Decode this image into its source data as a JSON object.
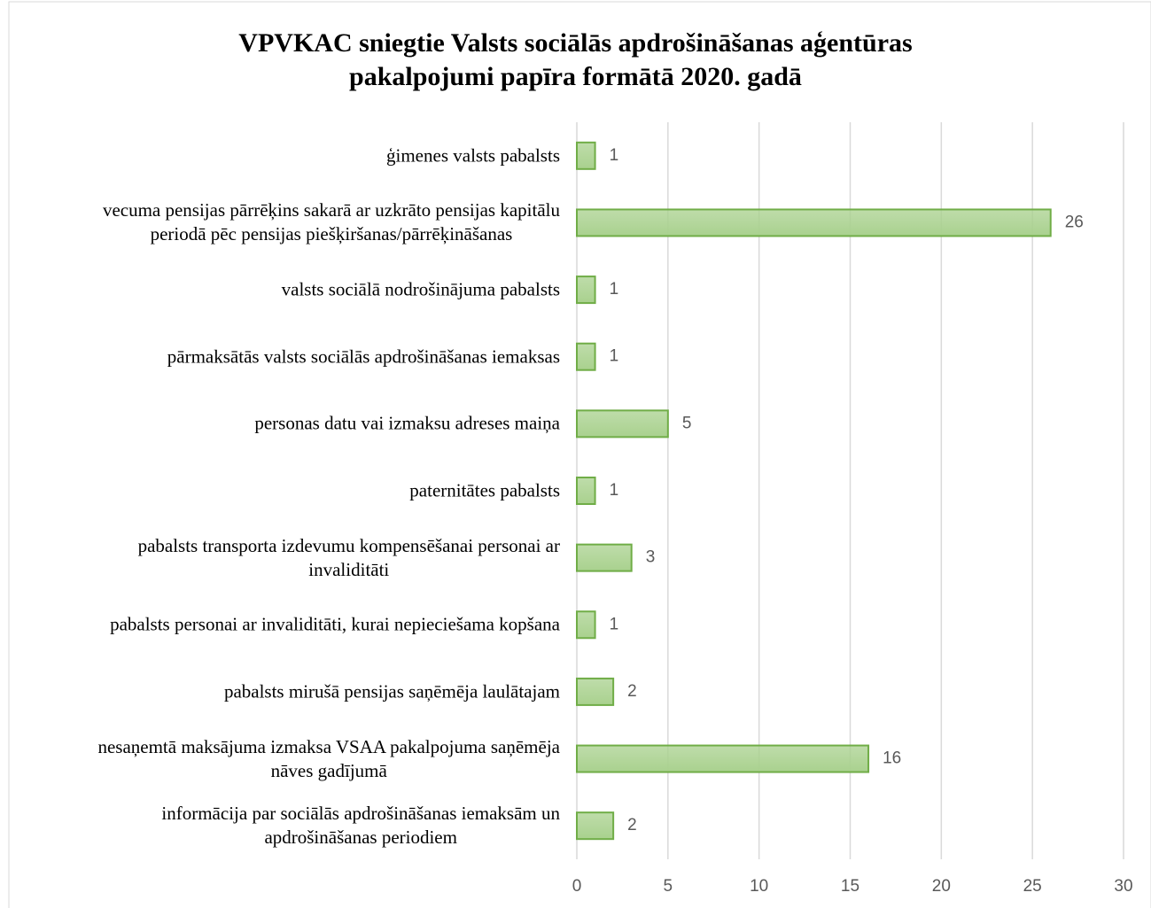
{
  "chart_data": {
    "type": "hbar",
    "title": "VPVKAC sniegtie Valsts sociālās apdrošināšanas aģentūras\npakalpojumi papīra formātā 2020. gadā",
    "categories": [
      "ģimenes valsts pabalsts",
      "vecuma pensijas pārrēķins sakarā ar uzkrāto pensijas kapitālu\nperiodā pēc pensijas piešķiršanas/pārrēķināšanas",
      "valsts sociālā nodrošinājuma pabalsts",
      "pārmaksātās valsts sociālās apdrošināšanas iemaksas",
      "personas datu vai izmaksu adreses maiņa",
      "paternitātes pabalsts",
      "pabalsts transporta izdevumu kompensēšanai personai ar\ninvaliditāti",
      "pabalsts personai ar invaliditāti, kurai nepieciešama kopšana",
      "pabalsts mirušā pensijas saņēmēja laulātajam",
      "nesaņemtā maksājuma izmaksa VSAA pakalpojuma saņēmēja\nnāves gadījumā",
      "informācija par sociālās apdrošināšanas iemaksām un\napdrošināšanas periodiem"
    ],
    "values": [
      1,
      26,
      1,
      1,
      5,
      1,
      3,
      1,
      2,
      16,
      2
    ],
    "color": "#a9d18e",
    "edge_color": "#70ad47",
    "xlim": [
      0,
      30
    ],
    "xticks": [
      0,
      5,
      10,
      15,
      20,
      25,
      30
    ],
    "grid": true
  }
}
